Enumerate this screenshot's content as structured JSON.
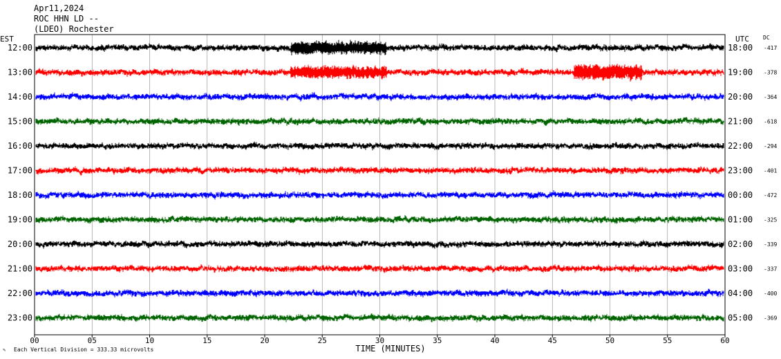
{
  "header": {
    "date": "Apr11,2024",
    "station": "ROC HHN LD --",
    "location": "(LDEO) Rochester"
  },
  "left_axis_title": "EST",
  "right_axis_title": "UTC",
  "dc_title": "DC",
  "x_axis_title": "TIME (MINUTES)",
  "footer_note": "Each Vertical Division =  333.33 microvolts",
  "chart_data": {
    "type": "line",
    "title": "",
    "xlabel": "TIME (MINUTES)",
    "xlim": [
      0,
      60
    ],
    "x_ticks": [
      "00",
      "05",
      "10",
      "15",
      "20",
      "25",
      "30",
      "35",
      "40",
      "45",
      "50",
      "55",
      "60"
    ],
    "grid": "vertical lines every 5 minutes",
    "series_colors": [
      "#000000",
      "#ff0000",
      "#0000ff",
      "#006400"
    ],
    "rows": [
      {
        "est": "12:00",
        "utc": "18:00",
        "dc": "-417"
      },
      {
        "est": "13:00",
        "utc": "19:00",
        "dc": "-378"
      },
      {
        "est": "14:00",
        "utc": "20:00",
        "dc": "-364"
      },
      {
        "est": "15:00",
        "utc": "21:00",
        "dc": "-618"
      },
      {
        "est": "16:00",
        "utc": "22:00",
        "dc": "-294"
      },
      {
        "est": "17:00",
        "utc": "23:00",
        "dc": "-401"
      },
      {
        "est": "18:00",
        "utc": "00:00",
        "dc": "-472"
      },
      {
        "est": "19:00",
        "utc": "01:00",
        "dc": "-325"
      },
      {
        "est": "20:00",
        "utc": "02:00",
        "dc": "-339"
      },
      {
        "est": "21:00",
        "utc": "03:00",
        "dc": "-337"
      },
      {
        "est": "22:00",
        "utc": "04:00",
        "dc": "-400"
      },
      {
        "est": "23:00",
        "utc": "05:00",
        "dc": "-369"
      }
    ]
  }
}
